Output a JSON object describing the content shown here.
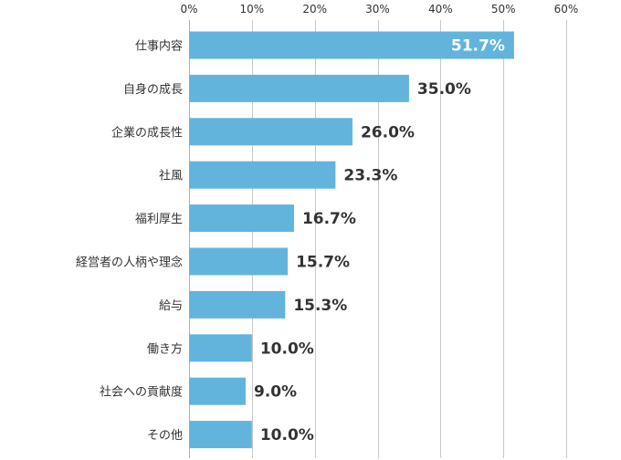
{
  "chart_data": {
    "type": "bar",
    "orientation": "horizontal",
    "categories": [
      "仕事内容",
      "自身の成長",
      "企業の成長性",
      "社風",
      "福利厚生",
      "経営者の人柄や理念",
      "給与",
      "働き方",
      "社会への貢献度",
      "その他"
    ],
    "values": [
      51.7,
      35.0,
      26.0,
      23.3,
      16.7,
      15.7,
      15.3,
      10.0,
      9.0,
      10.0
    ],
    "value_labels": [
      "51.7%",
      "35.0%",
      "26.0%",
      "23.3%",
      "16.7%",
      "15.7%",
      "15.3%",
      "10.0%",
      "9.0%",
      "10.0%"
    ],
    "xlim": [
      0,
      60
    ],
    "x_ticks": [
      "0%",
      "10%",
      "20%",
      "30%",
      "40%",
      "50%",
      "60%"
    ],
    "x_tick_values": [
      0,
      10,
      20,
      30,
      40,
      50,
      60
    ],
    "x_axis_position": "top",
    "grid": true,
    "title": "",
    "xlabel": "",
    "ylabel": "",
    "colors": {
      "bar": "#62b4dd",
      "grid": "#c8c8c8",
      "text": "#333333",
      "inside_label": "#ffffff"
    }
  }
}
